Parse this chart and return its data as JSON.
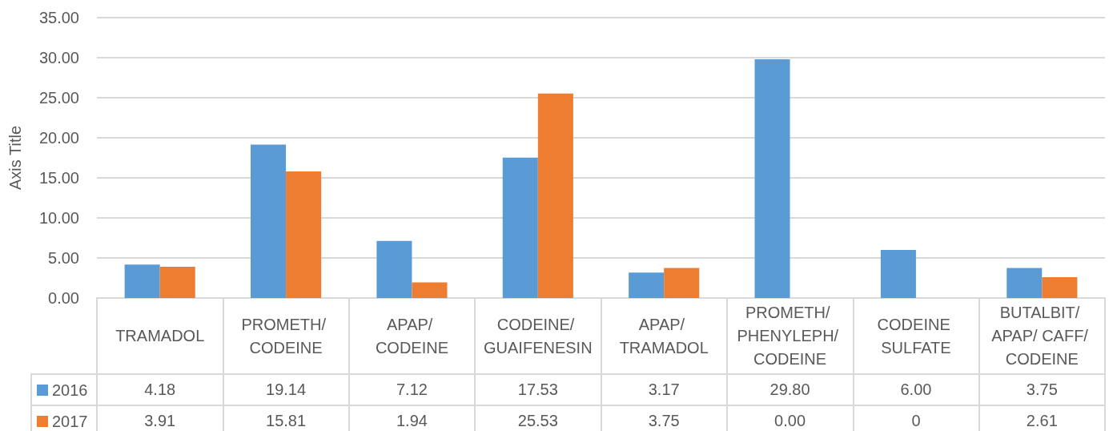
{
  "chart_data": {
    "type": "bar",
    "ylabel": "Axis Title",
    "categories": [
      "TRAMADOL",
      "PROMETH/ CODEINE",
      "APAP/ CODEINE",
      "CODEINE/ GUAIFENESIN",
      "APAP/ TRAMADOL",
      "PROMETH/ PHENYLEPH/ CODEINE",
      "CODEINE SULFATE",
      "BUTALBIT/ APAP/ CAFF/ CODEINE"
    ],
    "series": [
      {
        "name": "2016",
        "color": "#5b9bd5",
        "values": [
          4.18,
          19.14,
          7.12,
          17.53,
          3.17,
          29.8,
          6.0,
          3.75
        ],
        "value_labels": [
          "4.18",
          "19.14",
          "7.12",
          "17.53",
          "3.17",
          "29.80",
          "6.00",
          "3.75"
        ]
      },
      {
        "name": "2017",
        "color": "#ed7d31",
        "values": [
          3.91,
          15.81,
          1.94,
          25.53,
          3.75,
          0.0,
          0,
          2.61
        ],
        "value_labels": [
          "3.91",
          "15.81",
          "1.94",
          "25.53",
          "3.75",
          "0.00",
          "0",
          "2.61"
        ]
      }
    ],
    "ylim": [
      0,
      35
    ],
    "yticks": [
      {
        "value": 0,
        "label": "0.00"
      },
      {
        "value": 5,
        "label": "5.00"
      },
      {
        "value": 10,
        "label": "10.00"
      },
      {
        "value": 15,
        "label": "15.00"
      },
      {
        "value": 20,
        "label": "20.00"
      },
      {
        "value": 25,
        "label": "25.00"
      },
      {
        "value": 30,
        "label": "30.00"
      },
      {
        "value": 35,
        "label": "35.00"
      }
    ],
    "grid": "y",
    "legend": "bottom left"
  }
}
